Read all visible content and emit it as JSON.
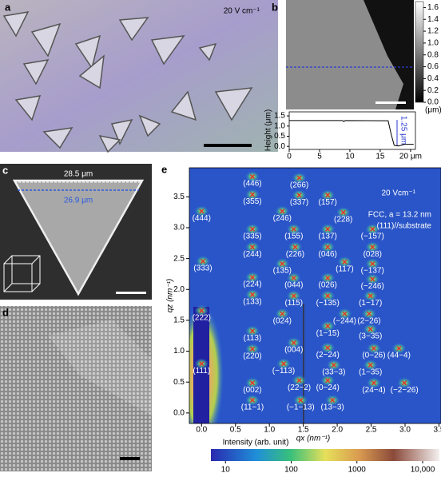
{
  "figure": {
    "a": {
      "label": "a",
      "annotation": "20 V cm⁻¹"
    },
    "b": {
      "label": "b",
      "colorbar": {
        "lim": [
          0,
          1.7
        ],
        "ticks": [
          1.6,
          1.4,
          1.2,
          {
            "value": 1.0,
            "label": "1.0"
          },
          0.8,
          0.6,
          0.4,
          0.2,
          {
            "value": 0.0,
            "label": "0.0"
          }
        ],
        "unit": "(μm)"
      },
      "profile": {
        "type": "line",
        "y_label": "Height (μm)",
        "color": "#000000",
        "x": [
          0,
          8.8,
          9.0,
          9.2,
          16.3,
          16.8,
          17.3,
          18,
          19,
          20.5
        ],
        "values": [
          1.27,
          1.27,
          1.22,
          1.27,
          1.26,
          0.6,
          0.05,
          0.02,
          0.1,
          0.1
        ],
        "xlim": [
          0,
          20.8
        ],
        "ylim": [
          -0.15,
          1.7
        ],
        "xticks": [
          0,
          5,
          10,
          15,
          {
            "value": 20,
            "label": "20 μm"
          }
        ],
        "yticks": [
          {
            "value": 0.0,
            "label": "0.0"
          },
          0.5,
          {
            "value": 1.0,
            "label": "1.0"
          },
          1.5
        ],
        "annotation": "1.25 μm"
      }
    },
    "c": {
      "label": "c",
      "outer_width": "28.5 μm",
      "inner_width": "26.9 μm"
    },
    "d": {
      "label": "d"
    },
    "e": {
      "type": "scatter",
      "label": "e",
      "field": "20 Vcm⁻¹",
      "annotation_1": "FCC, a = 13.2 nm",
      "annotation_2": "(111)//substrate",
      "x_label": "qx (nm⁻¹)",
      "y_label": "qz (nm⁻¹)",
      "marker_color": "#e0302a",
      "xlim": [
        -0.18,
        3.53
      ],
      "ylim": [
        -0.17,
        3.97
      ],
      "xticks": [
        {
          "value": 0.0,
          "label": "0.0"
        },
        0.5,
        {
          "value": 1.0,
          "label": "1.0"
        },
        1.5,
        {
          "value": 2.0,
          "label": "2.0"
        },
        2.5,
        {
          "value": 3.0,
          "label": "3.0"
        },
        3.5
      ],
      "yticks": [
        {
          "value": 0.0,
          "label": "0.0"
        },
        0.5,
        {
          "value": 1.0,
          "label": "1.0"
        },
        1.5,
        {
          "value": 2.0,
          "label": "2.0"
        },
        2.5,
        {
          "value": 3.0,
          "label": "3.0"
        },
        3.5
      ],
      "peaks": [
        {
          "label": "(444)",
          "qx": 0.0,
          "qz": 3.15
        },
        {
          "label": "(333)",
          "qx": 0.02,
          "qz": 2.34
        },
        {
          "label": "(222)",
          "qx": 0.0,
          "qz": 1.54
        },
        {
          "label": "(111)",
          "qx": 0.0,
          "qz": 0.68
        },
        {
          "label": "(446)",
          "qx": 0.75,
          "qz": 3.71
        },
        {
          "label": "(355)",
          "qx": 0.75,
          "qz": 3.42
        },
        {
          "label": "(335)",
          "qx": 0.75,
          "qz": 2.86
        },
        {
          "label": "(244)",
          "qx": 0.75,
          "qz": 2.57
        },
        {
          "label": "(224)",
          "qx": 0.75,
          "qz": 2.08
        },
        {
          "label": "(133)",
          "qx": 0.75,
          "qz": 1.8
        },
        {
          "label": "(113)",
          "qx": 0.75,
          "qz": 1.21
        },
        {
          "label": "(220)",
          "qx": 0.75,
          "qz": 0.92
        },
        {
          "label": "(002)",
          "qx": 0.75,
          "qz": 0.37
        },
        {
          "label": "(11−1)",
          "qx": 0.75,
          "qz": 0.09
        },
        {
          "label": "(266)",
          "qx": 1.44,
          "qz": 3.69
        },
        {
          "label": "(337)",
          "qx": 1.44,
          "qz": 3.41
        },
        {
          "label": "(246)",
          "qx": 1.19,
          "qz": 3.15
        },
        {
          "label": "(155)",
          "qx": 1.36,
          "qz": 2.86
        },
        {
          "label": "(226)",
          "qx": 1.38,
          "qz": 2.57
        },
        {
          "label": "(135)",
          "qx": 1.19,
          "qz": 2.3
        },
        {
          "label": "(044)",
          "qx": 1.36,
          "qz": 2.07
        },
        {
          "label": "(115)",
          "qx": 1.36,
          "qz": 1.78
        },
        {
          "label": "(024)",
          "qx": 1.19,
          "qz": 1.49
        },
        {
          "label": "(004)",
          "qx": 1.36,
          "qz": 1.02
        },
        {
          "label": "(−113)",
          "qx": 1.21,
          "qz": 0.68
        },
        {
          "label": "(22−2)",
          "qx": 1.44,
          "qz": 0.41
        },
        {
          "label": "(−1−13)",
          "qx": 1.46,
          "qz": 0.09
        },
        {
          "label": "(157)",
          "qx": 1.86,
          "qz": 3.41
        },
        {
          "label": "(228)",
          "qx": 2.09,
          "qz": 3.13
        },
        {
          "label": "(137)",
          "qx": 1.86,
          "qz": 2.86
        },
        {
          "label": "(046)",
          "qx": 1.86,
          "qz": 2.57
        },
        {
          "label": "(117)",
          "qx": 2.11,
          "qz": 2.33
        },
        {
          "label": "(026)",
          "qx": 1.86,
          "qz": 2.07
        },
        {
          "label": "(−135)",
          "qx": 1.86,
          "qz": 1.78
        },
        {
          "label": "(−244)",
          "qx": 2.11,
          "qz": 1.49
        },
        {
          "label": "(1−15)",
          "qx": 1.86,
          "qz": 1.29
        },
        {
          "label": "(2−24)",
          "qx": 1.86,
          "qz": 0.94
        },
        {
          "label": "(33−3)",
          "qx": 1.95,
          "qz": 0.66
        },
        {
          "label": "(0−24)",
          "qx": 1.86,
          "qz": 0.41
        },
        {
          "label": "(13−3)",
          "qx": 1.93,
          "qz": 0.09
        },
        {
          "label": "(−157)",
          "qx": 2.52,
          "qz": 2.86
        },
        {
          "label": "(028)",
          "qx": 2.52,
          "qz": 2.57
        },
        {
          "label": "(−137)",
          "qx": 2.52,
          "qz": 2.3
        },
        {
          "label": "(−246)",
          "qx": 2.52,
          "qz": 2.05
        },
        {
          "label": "(1−17)",
          "qx": 2.49,
          "qz": 1.78
        },
        {
          "label": "(2−26)",
          "qx": 2.47,
          "qz": 1.49
        },
        {
          "label": "(3−35)",
          "qx": 2.49,
          "qz": 1.24
        },
        {
          "label": "(0−26)",
          "qx": 2.54,
          "qz": 0.93
        },
        {
          "label": "(44−4)",
          "qx": 2.91,
          "qz": 0.93
        },
        {
          "label": "(1−35)",
          "qx": 2.49,
          "qz": 0.66
        },
        {
          "label": "(24−4)",
          "qx": 2.54,
          "qz": 0.37
        },
        {
          "label": "(−2−26)",
          "qx": 2.99,
          "qz": 0.37
        }
      ],
      "colorbar": {
        "label": "Intensity (arb. unit)",
        "log": true,
        "lim": [
          6,
          18000
        ],
        "ticks": [
          10,
          100,
          1000,
          {
            "value": 10000,
            "label": "10,000"
          }
        ]
      }
    }
  }
}
